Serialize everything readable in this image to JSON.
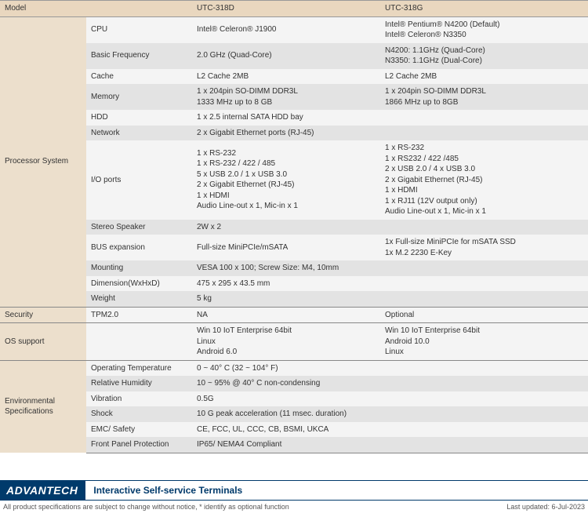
{
  "header": {
    "c1": "Model",
    "c2": "",
    "c3": "UTC-318D",
    "c4": "UTC-318G"
  },
  "sections": [
    {
      "category": "Processor System",
      "rows": [
        {
          "label": "CPU",
          "v1": "Intel® Celeron® J1900",
          "v2": "Intel® Pentium® N4200 (Default)\nIntel® Celeron® N3350"
        },
        {
          "label": "Basic Frequency",
          "v1": "2.0 GHz (Quad-Core)",
          "v2": "N4200: 1.1GHz (Quad-Core)\nN3350: 1.1GHz (Dual-Core)"
        },
        {
          "label": "Cache",
          "v1": "L2 Cache 2MB",
          "v2": "L2 Cache 2MB"
        },
        {
          "label": "Memory",
          "v1": "1 x 204pin SO-DIMM DDR3L\n1333 MHz up to 8 GB",
          "v2": "1 x 204pin SO-DIMM DDR3L\n1866 MHz up to 8GB"
        },
        {
          "label": "HDD",
          "v1": "1 x 2.5 internal SATA HDD bay",
          "span": true
        },
        {
          "label": "Network",
          "v1": "2 x Gigabit Ethernet ports (RJ-45)",
          "span": true
        },
        {
          "label": "I/O ports",
          "v1": "1 x RS-232\n1 x RS-232 / 422 / 485\n5 x USB 2.0 / 1 x USB 3.0\n2 x Gigabit Ethernet (RJ-45)\n1 x HDMI\nAudio Line-out x 1, Mic-in x 1",
          "v2": "1 x RS-232\n1 x RS232 / 422 /485\n2 x USB 2.0 / 4 x USB 3.0\n2 x Gigabit Ethernet (RJ-45)\n1 x HDMI\n1 x RJ11 (12V output only)\nAudio Line-out x 1, Mic-in x 1"
        },
        {
          "label": "Stereo Speaker",
          "v1": "2W x 2",
          "span": true
        },
        {
          "label": "BUS expansion",
          "v1": "Full-size MiniPCIe/mSATA",
          "v2": "1x Full-size MiniPCIe for mSATA SSD\n1x M.2 2230 E-Key"
        },
        {
          "label": "Mounting",
          "v1": "VESA 100 x 100; Screw Size: M4, 10mm",
          "span": true
        },
        {
          "label": "Dimension(WxHxD)",
          "v1": "475 x 295 x 43.5 mm",
          "span": true
        },
        {
          "label": "Weight",
          "v1": "5 kg",
          "span": true
        }
      ]
    },
    {
      "category": "Security",
      "rows": [
        {
          "label": "TPM2.0",
          "v1": "NA",
          "v2": "Optional"
        }
      ]
    },
    {
      "category": "OS support",
      "rows": [
        {
          "label": "",
          "v1": "Win 10 IoT Enterprise 64bit\nLinux\nAndroid 6.0",
          "v2": "Win 10 IoT Enterprise 64bit\nAndroid 10.0\nLinux"
        }
      ]
    },
    {
      "category": "Environmental Specifications",
      "rows": [
        {
          "label": "Operating Temperature",
          "v1": "0 ~ 40° C (32 ~ 104° F)",
          "span": true
        },
        {
          "label": "Relative Humidity",
          "v1": "10 ~ 95% @ 40° C non-condensing",
          "span": true
        },
        {
          "label": "Vibration",
          "v1": "0.5G",
          "span": true
        },
        {
          "label": "Shock",
          "v1": "10 G peak acceleration (11 msec. duration)",
          "span": true
        },
        {
          "label": "EMC/ Safety",
          "v1": "CE, FCC, UL, CCC, CB, BSMI, UKCA",
          "span": true
        },
        {
          "label": "Front Panel Protection",
          "v1": "IP65/ NEMA4 Compliant",
          "span": true
        }
      ]
    }
  ],
  "footer": {
    "brand": "ADVANTECH",
    "title": "Interactive Self-service Terminals",
    "disclaimer": "All product specifications are subject to change without notice, * identify as optional function",
    "updated": "Last updated: 6-Jul-2023"
  }
}
